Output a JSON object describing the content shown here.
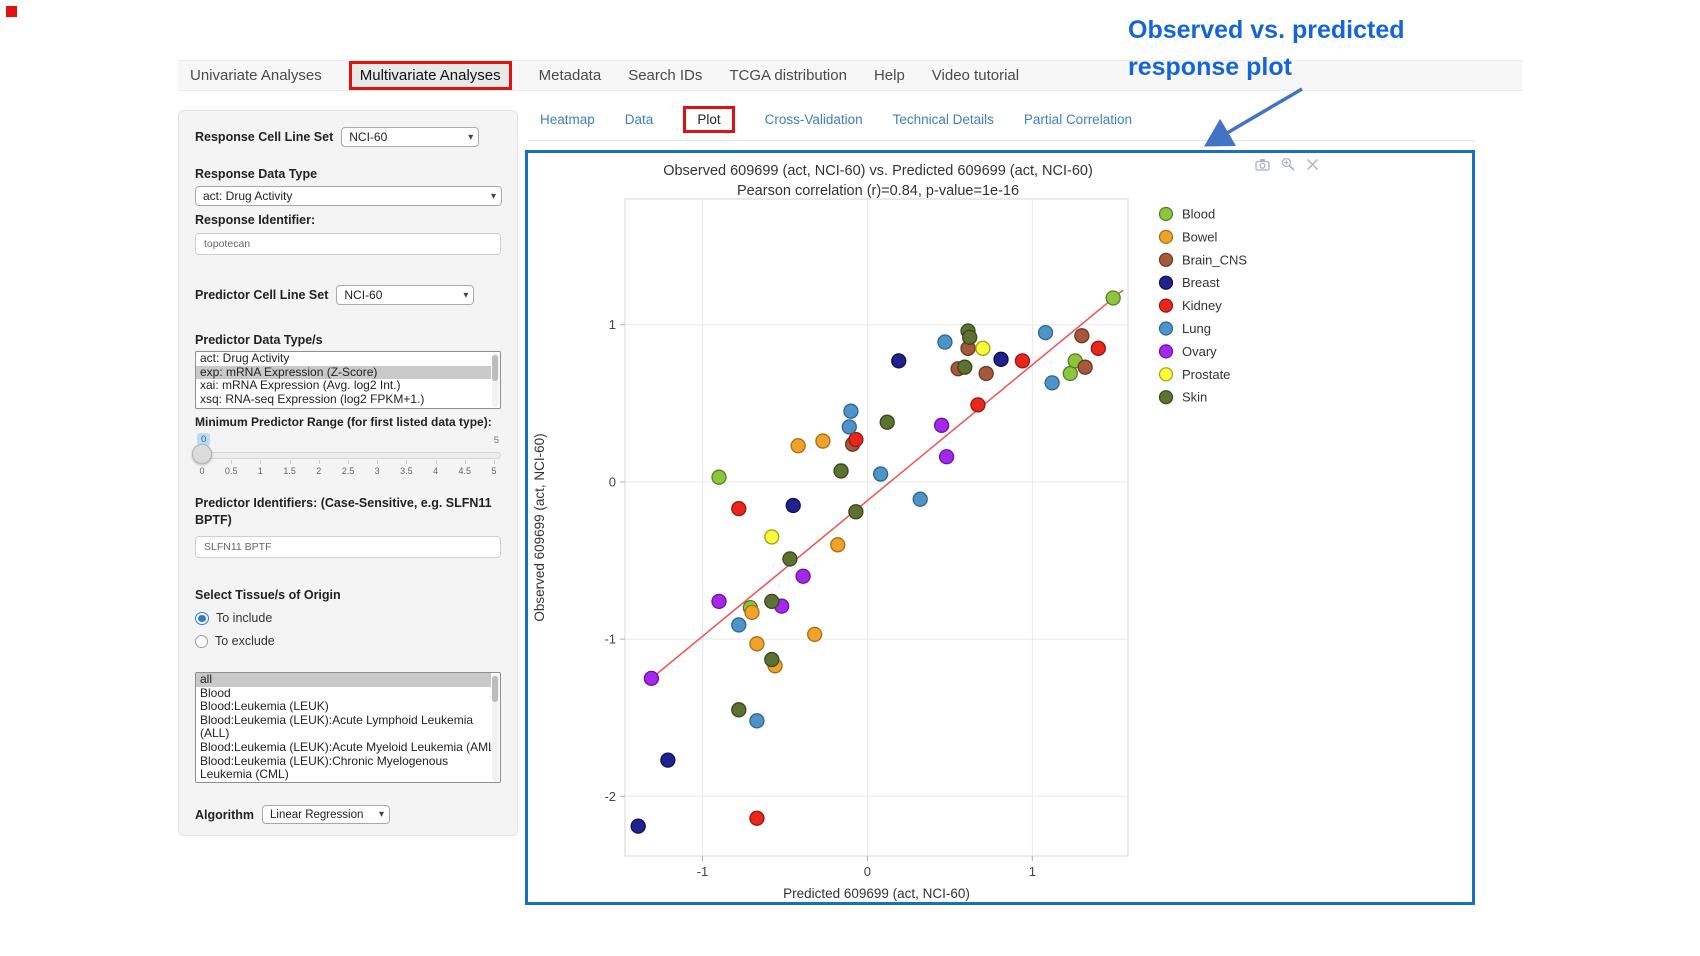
{
  "annotation": {
    "line1": "Observed  vs. predicted",
    "line2": "response plot",
    "color": "#1565d8",
    "arrow_color": "#4472c4"
  },
  "colors": {
    "container_border": "#1a6fc3",
    "highlight_box": "#df1111",
    "link_blue": "#3e7fc1",
    "trend_line": "#f25252"
  },
  "nav": {
    "items": [
      {
        "label": "Univariate Analyses",
        "active": false
      },
      {
        "label": "Multivariate Analyses",
        "active": true
      },
      {
        "label": "Metadata",
        "active": false
      },
      {
        "label": "Search IDs",
        "active": false
      },
      {
        "label": "TCGA distribution",
        "active": false
      },
      {
        "label": "Help",
        "active": false
      },
      {
        "label": "Video tutorial",
        "active": false
      }
    ]
  },
  "sidebar": {
    "response_cell_line_set": {
      "label": "Response Cell Line Set",
      "value": "NCI-60"
    },
    "response_data_type": {
      "label": "Response Data Type",
      "value": "act: Drug Activity"
    },
    "response_identifier": {
      "label": "Response Identifier:",
      "value": "topotecan"
    },
    "predictor_cell_line_set": {
      "label": "Predictor Cell Line Set",
      "value": "NCI-60"
    },
    "predictor_data_types": {
      "label": "Predictor Data Type/s",
      "options": [
        "act: Drug Activity",
        "exp: mRNA Expression (Z-Score)",
        "xai: mRNA Expression (Avg. log2 Int.)",
        "xsq: RNA-seq Expression (log2 FPKM+1.)"
      ],
      "selected_index": 1
    },
    "min_predictor_range": {
      "label": "Minimum Predictor Range (for first listed data type):",
      "value": "0",
      "max_label": "5",
      "ticks": [
        "0",
        "0.5",
        "1",
        "1.5",
        "2",
        "2.5",
        "3",
        "3.5",
        "4",
        "4.5",
        "5"
      ]
    },
    "predictor_identifiers": {
      "label": "Predictor Identifiers: (Case-Sensitive, e.g. SLFN11 BPTF)",
      "value": "SLFN11 BPTF"
    },
    "tissue_origin": {
      "label": "Select Tissue/s of Origin",
      "radios": [
        {
          "label": "To include",
          "selected": true
        },
        {
          "label": "To exclude",
          "selected": false
        }
      ],
      "options": [
        "all",
        "Blood",
        "Blood:Leukemia (LEUK)",
        "Blood:Leukemia (LEUK):Acute Lymphoid Leukemia (ALL)",
        "Blood:Leukemia (LEUK):Acute Myeloid Leukemia (AML)",
        "Blood:Leukemia (LEUK):Chronic Myelogenous Leukemia (CML)"
      ],
      "selected_index": 0,
      "nowrap_index": 4
    },
    "algorithm": {
      "label": "Algorithm",
      "value": "Linear Regression"
    }
  },
  "tabs": {
    "items": [
      {
        "label": "Heatmap",
        "active": false
      },
      {
        "label": "Data",
        "active": false
      },
      {
        "label": "Plot",
        "active": true
      },
      {
        "label": "Cross-Validation",
        "active": false
      },
      {
        "label": "Technical Details",
        "active": false
      },
      {
        "label": "Partial Correlation",
        "active": false
      }
    ]
  },
  "modebar_icons": [
    "camera-icon",
    "zoom-icon",
    "pan-icon"
  ],
  "chart_data": {
    "type": "scatter",
    "title": "Observed 609699 (act, NCI-60) vs. Predicted 609699 (act, NCI-60)",
    "subtitle": "Pearson correlation (r)=0.84, p-value=1e-16",
    "xlabel": "Predicted 609699 (act, NCI-60)",
    "ylabel": "Observed 609699 (act, NCI-60)",
    "xlim": [
      -1.47,
      1.58
    ],
    "ylim": [
      -2.38,
      1.8
    ],
    "xticks": [
      -1,
      0,
      1
    ],
    "yticks": [
      -2,
      -1,
      0,
      1
    ],
    "grid": true,
    "legend_position": "right",
    "trend_line": {
      "color": "#f25252",
      "x1": -1.31,
      "y1": -1.25,
      "x2": 1.55,
      "y2": 1.22
    },
    "series": [
      {
        "name": "Blood",
        "color": "#8CC63F",
        "stroke": "#567d22",
        "points": [
          [
            -0.9,
            0.03
          ],
          [
            1.23,
            0.69
          ],
          [
            1.26,
            0.77
          ],
          [
            1.49,
            1.17
          ],
          [
            -0.71,
            -0.8
          ]
        ]
      },
      {
        "name": "Bowel",
        "color": "#F0A32A",
        "stroke": "#a86e12",
        "points": [
          [
            -0.42,
            0.23
          ],
          [
            -0.27,
            0.26
          ],
          [
            -0.18,
            -0.4
          ],
          [
            -0.7,
            -0.83
          ],
          [
            -0.67,
            -1.03
          ],
          [
            -0.32,
            -0.97
          ],
          [
            -0.56,
            -1.17
          ]
        ]
      },
      {
        "name": "Brain_CNS",
        "color": "#A5593C",
        "stroke": "#6e3620",
        "points": [
          [
            0.61,
            0.85
          ],
          [
            0.55,
            0.72
          ],
          [
            0.72,
            0.69
          ],
          [
            1.3,
            0.93
          ],
          [
            1.32,
            0.73
          ],
          [
            -0.09,
            0.24
          ]
        ]
      },
      {
        "name": "Breast",
        "color": "#20208F",
        "stroke": "#0e0e52",
        "points": [
          [
            0.81,
            0.78
          ],
          [
            0.19,
            0.77
          ],
          [
            -0.45,
            -0.15
          ],
          [
            -1.21,
            -1.77
          ],
          [
            -1.39,
            -2.19
          ]
        ]
      },
      {
        "name": "Kidney",
        "color": "#E8261C",
        "stroke": "#991410",
        "points": [
          [
            0.94,
            0.77
          ],
          [
            1.4,
            0.85
          ],
          [
            -0.07,
            0.27
          ],
          [
            0.67,
            0.49
          ],
          [
            -0.78,
            -0.17
          ],
          [
            -0.67,
            -2.14
          ]
        ]
      },
      {
        "name": "Lung",
        "color": "#4E94C8",
        "stroke": "#2c6792",
        "points": [
          [
            0.47,
            0.89
          ],
          [
            1.08,
            0.95
          ],
          [
            1.12,
            0.63
          ],
          [
            -0.1,
            0.45
          ],
          [
            -0.11,
            0.35
          ],
          [
            0.08,
            0.05
          ],
          [
            0.32,
            -0.11
          ],
          [
            -0.78,
            -0.91
          ],
          [
            -0.67,
            -1.52
          ]
        ]
      },
      {
        "name": "Ovary",
        "color": "#A428EC",
        "stroke": "#6c0fa8",
        "points": [
          [
            0.45,
            0.36
          ],
          [
            0.48,
            0.16
          ],
          [
            -0.39,
            -0.6
          ],
          [
            -0.9,
            -0.76
          ],
          [
            -0.52,
            -0.79
          ],
          [
            -1.31,
            -1.25
          ]
        ]
      },
      {
        "name": "Prostate",
        "color": "#FBFB3A",
        "stroke": "#a3a312",
        "points": [
          [
            0.7,
            0.85
          ],
          [
            -0.58,
            -0.35
          ]
        ]
      },
      {
        "name": "Skin",
        "color": "#5D7232",
        "stroke": "#37471c",
        "points": [
          [
            0.61,
            0.96
          ],
          [
            0.62,
            0.92
          ],
          [
            0.59,
            0.73
          ],
          [
            0.12,
            0.38
          ],
          [
            -0.16,
            0.07
          ],
          [
            -0.07,
            -0.19
          ],
          [
            -0.47,
            -0.49
          ],
          [
            -0.58,
            -0.76
          ],
          [
            -0.58,
            -1.13
          ],
          [
            -0.78,
            -1.45
          ]
        ]
      }
    ]
  }
}
